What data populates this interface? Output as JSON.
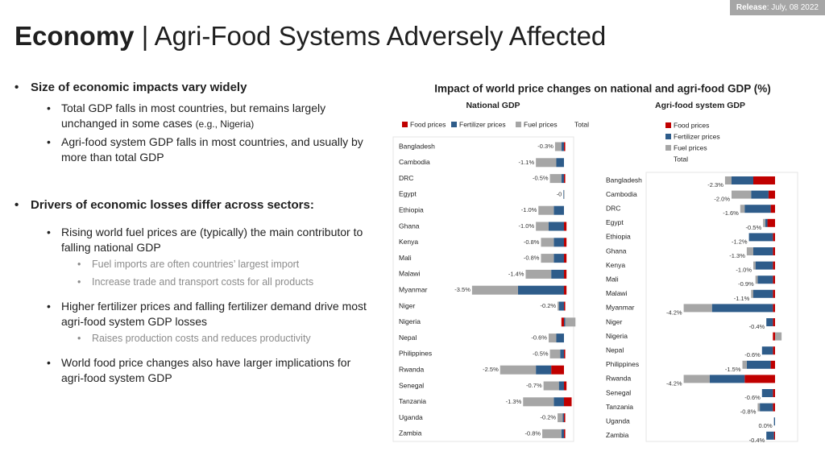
{
  "release_label": "Release",
  "release_date": "July, 08 2022",
  "title_bold": "Economy",
  "title_rest": "| Agri-Food Systems Adversely Affected",
  "bullets": [
    {
      "text": "Size of economic impacts vary widely",
      "items": [
        {
          "text": "Total GDP falls in most countries, but remains largely unchanged in some cases",
          "note": "(e.g., Nigeria)"
        },
        {
          "text": "Agri-food system GDP falls in most countries, and usually by more than total GDP"
        }
      ]
    },
    {
      "text": "Drivers of economic losses differ across sectors:",
      "items": [
        {
          "text": "Rising world fuel prices are (typically) the main contributor to falling national GDP",
          "items": [
            "Fuel imports are often countries’ largest import",
            "Increase trade and transport costs for all products"
          ]
        },
        {
          "text": "Higher fertilizer prices and falling fertilizer demand drive most agri-food system GDP losses",
          "items": [
            "Raises production costs and reduces productivity"
          ]
        },
        {
          "text": "World food price changes also have larger implications for agri-food system GDP"
        }
      ]
    }
  ],
  "charts_title": "Impact of world price changes on national and agri-food GDP (%)",
  "chart_data": [
    {
      "type": "bar",
      "orientation": "horizontal",
      "stacked": true,
      "title": "National GDP",
      "legend": "top",
      "categories": [
        "Bangladesh",
        "Cambodia",
        "DRC",
        "Egypt",
        "Ethiopia",
        "Ghana",
        "Kenya",
        "Mali",
        "Malawi",
        "Myanmar",
        "Niger",
        "Nigeria",
        "Nepal",
        "Philippines",
        "Rwanda",
        "Senegal",
        "Tanzania",
        "Uganda",
        "Zambia"
      ],
      "series": [
        {
          "name": "Food prices",
          "color": "#c00000",
          "values": [
            0.05,
            0,
            0.05,
            0,
            0,
            0.1,
            0.1,
            0.1,
            0.1,
            0.1,
            0.05,
            -0.1,
            0,
            0.05,
            -0.5,
            0.1,
            0.3,
            0.05,
            0.05
          ]
        },
        {
          "name": "Fertilizer prices",
          "color": "#2e5c8a",
          "values": [
            -0.1,
            -0.3,
            -0.1,
            -0.02,
            -0.4,
            -0.6,
            -0.4,
            -0.4,
            -0.5,
            -1.8,
            -0.2,
            0.05,
            -0.3,
            -0.15,
            -0.6,
            -0.2,
            -0.4,
            -0.05,
            -0.1
          ]
        },
        {
          "name": "Fuel prices",
          "color": "#a6a6a6",
          "values": [
            -0.25,
            -0.8,
            -0.45,
            0.02,
            -0.6,
            -0.5,
            -0.5,
            -0.5,
            -1.0,
            -1.8,
            -0.05,
            0.4,
            -0.3,
            -0.4,
            -1.4,
            -0.6,
            -1.2,
            -0.2,
            -0.75
          ]
        }
      ],
      "total": {
        "name": "Total",
        "values": [
          -0.3,
          -1.1,
          -0.5,
          0,
          -1.0,
          -1.0,
          -0.8,
          -0.8,
          -1.4,
          -3.5,
          -0.2,
          0.3,
          -0.6,
          -0.5,
          -2.5,
          -0.7,
          -1.3,
          -0.2,
          -0.8
        ],
        "value_labels": [
          "-0.3%",
          "-1.1%",
          "-0.5%",
          "-0",
          "-1.0%",
          "-1.0%",
          "-0.8%",
          "-0.8%",
          "-1.4%",
          "-3.5%",
          "-0.2%",
          null,
          "-0.6%",
          "-0.5%",
          "-2.5%",
          "-0.7%",
          "-1.3%",
          "-0.2%",
          "-0.8%"
        ]
      }
    },
    {
      "type": "bar",
      "orientation": "horizontal",
      "stacked": true,
      "title": "Agri-food system GDP",
      "legend": "top-right",
      "categories": [
        "Bangladesh",
        "Cambodia",
        "DRC",
        "Egypt",
        "Ethiopia",
        "Ghana",
        "Kenya",
        "Mali",
        "Malawi",
        "Myanmar",
        "Niger",
        "Nigeria",
        "Nepal",
        "Philippines",
        "Rwanda",
        "Senegal",
        "Tanzania",
        "Uganda",
        "Zambia"
      ],
      "series": [
        {
          "name": "Food prices",
          "color": "#c00000",
          "values": [
            -1.0,
            -0.3,
            -0.2,
            -0.35,
            -0.1,
            -0.1,
            -0.1,
            -0.1,
            -0.1,
            -0.1,
            -0.1,
            -0.1,
            -0.1,
            -0.2,
            -1.4,
            -0.1,
            -0.1,
            0,
            -0.05
          ]
        },
        {
          "name": "Fertilizer prices",
          "color": "#2e5c8a",
          "values": [
            -1.0,
            -0.8,
            -1.2,
            -0.1,
            -1.1,
            -0.9,
            -0.8,
            -0.7,
            -0.9,
            -2.8,
            -0.3,
            0,
            -0.5,
            -1.1,
            -1.6,
            -0.5,
            -0.6,
            -0.05,
            -0.35
          ]
        },
        {
          "name": "Fuel prices",
          "color": "#a6a6a6",
          "values": [
            -0.3,
            -0.9,
            -0.2,
            -0.1,
            0,
            -0.3,
            -0.1,
            -0.1,
            -0.1,
            -1.3,
            0,
            0.3,
            0,
            -0.2,
            -1.2,
            0,
            -0.1,
            0,
            0
          ]
        }
      ],
      "total": {
        "name": "Total",
        "values": [
          -2.3,
          -2.0,
          -1.6,
          -0.5,
          -1.2,
          -1.3,
          -1.0,
          -0.9,
          -1.1,
          -4.2,
          -0.4,
          0.2,
          -0.6,
          -1.5,
          -4.2,
          -0.6,
          -0.8,
          0.0,
          -0.4
        ],
        "value_labels": [
          "-2.3%",
          "-2.0%",
          "-1.6%",
          "-0.5%",
          "-1.2%",
          "-1.3%",
          "-1.0%",
          "-0.9%",
          "-1.1%",
          "-4.2%",
          "-0.4%",
          null,
          "-0.6%",
          "-1.5%",
          "-4.2%",
          "-0.6%",
          "-0.8%",
          "0.0%",
          "-0.4%"
        ]
      }
    }
  ]
}
